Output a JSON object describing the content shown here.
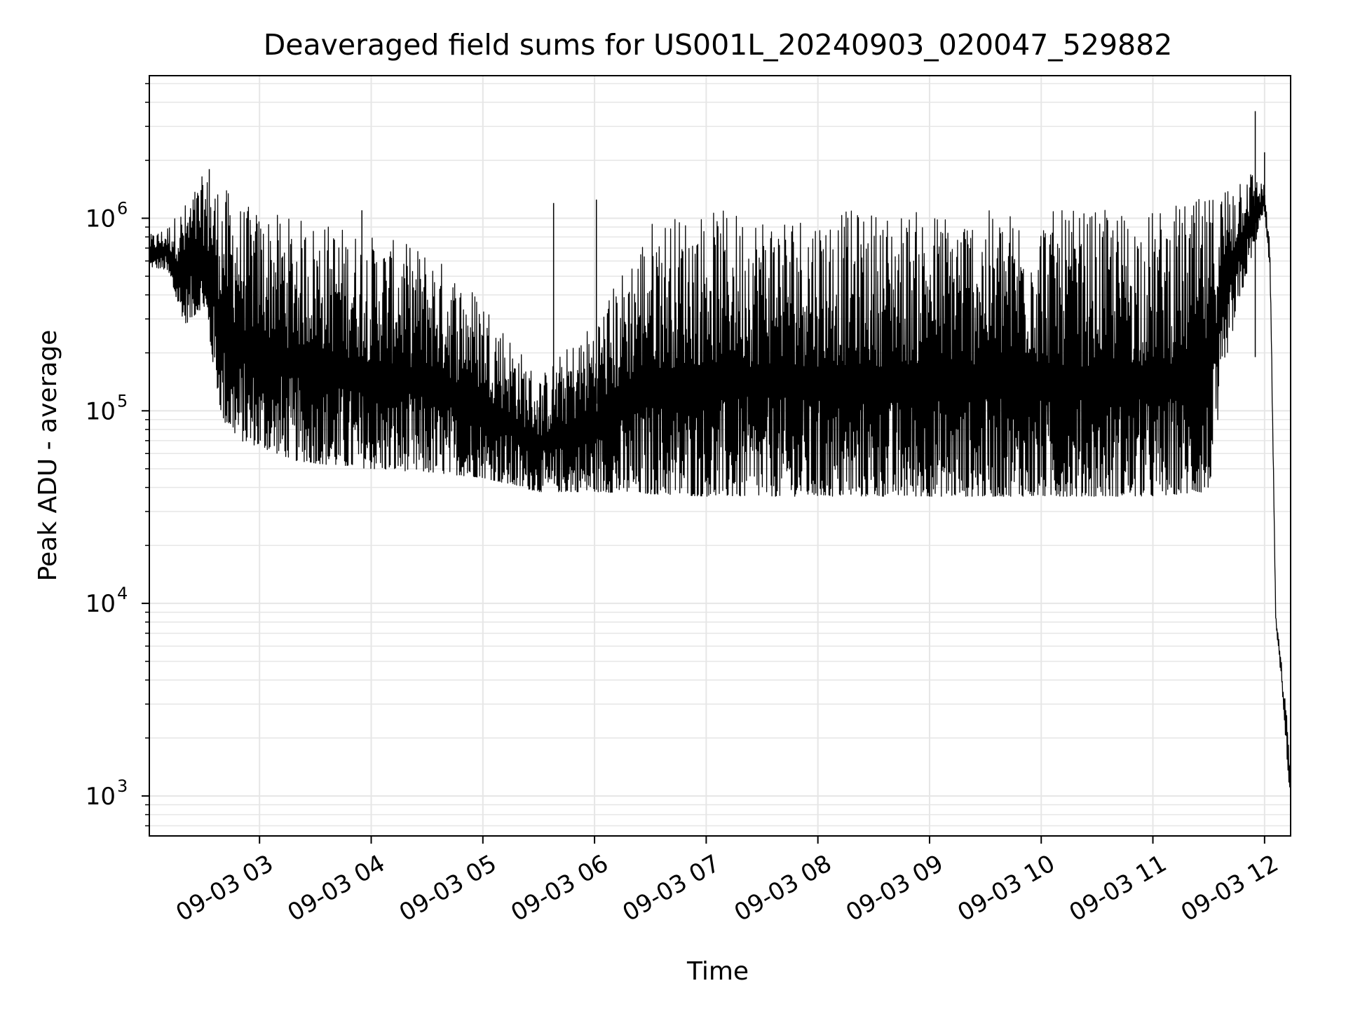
{
  "chart_data": {
    "type": "line",
    "title": "Deaveraged field sums for US001L_20240903_020047_529882",
    "xlabel": "Time",
    "ylabel": "Peak ADU - average",
    "y_scale": "log",
    "ylim": [
      620,
      5500000
    ],
    "xlim": [
      "2024-09-03 02:00:47",
      "2024-09-03 12:14:00"
    ],
    "grid": true,
    "x_ticks": [
      {
        "value": "2024-09-03 03:00",
        "label": "09-03 03"
      },
      {
        "value": "2024-09-03 04:00",
        "label": "09-03 04"
      },
      {
        "value": "2024-09-03 05:00",
        "label": "09-03 05"
      },
      {
        "value": "2024-09-03 06:00",
        "label": "09-03 06"
      },
      {
        "value": "2024-09-03 07:00",
        "label": "09-03 07"
      },
      {
        "value": "2024-09-03 08:00",
        "label": "09-03 08"
      },
      {
        "value": "2024-09-03 09:00",
        "label": "09-03 09"
      },
      {
        "value": "2024-09-03 10:00",
        "label": "09-03 10"
      },
      {
        "value": "2024-09-03 11:00",
        "label": "09-03 11"
      },
      {
        "value": "2024-09-03 12:00",
        "label": "09-03 12"
      }
    ],
    "y_ticks": [
      {
        "value": 1000,
        "base": "10",
        "exp": "3"
      },
      {
        "value": 10000,
        "base": "10",
        "exp": "4"
      },
      {
        "value": 100000,
        "base": "10",
        "exp": "5"
      },
      {
        "value": 1000000,
        "base": "10",
        "exp": "6"
      }
    ],
    "series": [
      {
        "color": "#000000",
        "envelope": [
          {
            "t": "2024-09-03 02:01",
            "low": 560000,
            "high": 820000
          },
          {
            "t": "2024-09-03 02:10",
            "low": 540000,
            "high": 900000
          },
          {
            "t": "2024-09-03 02:20",
            "low": 280000,
            "high": 1200000
          },
          {
            "t": "2024-09-03 02:30",
            "low": 350000,
            "high": 1700000
          },
          {
            "t": "2024-09-03 02:40",
            "low": 90000,
            "high": 1500000
          },
          {
            "t": "2024-09-03 02:50",
            "low": 70000,
            "high": 1200000
          },
          {
            "t": "2024-09-03 03:00",
            "low": 65000,
            "high": 1100000
          },
          {
            "t": "2024-09-03 03:20",
            "low": 55000,
            "high": 1000000
          },
          {
            "t": "2024-09-03 03:40",
            "low": 52000,
            "high": 950000
          },
          {
            "t": "2024-09-03 04:00",
            "low": 50000,
            "high": 820000
          },
          {
            "t": "2024-09-03 04:30",
            "low": 48000,
            "high": 700000
          },
          {
            "t": "2024-09-03 05:00",
            "low": 45000,
            "high": 400000
          },
          {
            "t": "2024-09-03 05:30",
            "low": 38000,
            "high": 150000
          },
          {
            "t": "2024-09-03 06:00",
            "low": 38000,
            "high": 300000
          },
          {
            "t": "2024-09-03 06:30",
            "low": 37000,
            "high": 1000000
          },
          {
            "t": "2024-09-03 07:00",
            "low": 36000,
            "high": 1100000
          },
          {
            "t": "2024-09-03 08:00",
            "low": 36000,
            "high": 1100000
          },
          {
            "t": "2024-09-03 09:00",
            "low": 36000,
            "high": 1100000
          },
          {
            "t": "2024-09-03 10:00",
            "low": 36000,
            "high": 1100000
          },
          {
            "t": "2024-09-03 11:00",
            "low": 36000,
            "high": 1100000
          },
          {
            "t": "2024-09-03 11:30",
            "low": 38000,
            "high": 1300000
          },
          {
            "t": "2024-09-03 11:40",
            "low": 200000,
            "high": 1600000
          },
          {
            "t": "2024-09-03 11:50",
            "low": 500000,
            "high": 1900000
          },
          {
            "t": "2024-09-03 12:00",
            "low": 1100000,
            "high": 1500000
          },
          {
            "t": "2024-09-03 12:03",
            "low": 500000,
            "high": 700000
          },
          {
            "t": "2024-09-03 12:06",
            "low": 8000,
            "high": 9000
          },
          {
            "t": "2024-09-03 12:09",
            "low": 4000,
            "high": 5000
          },
          {
            "t": "2024-09-03 12:12",
            "low": 1600,
            "high": 2600
          },
          {
            "t": "2024-09-03 12:14",
            "low": 900,
            "high": 1500
          }
        ],
        "spikes": [
          {
            "t": "2024-09-03 02:33",
            "value": 1800000
          },
          {
            "t": "2024-09-03 03:55",
            "value": 1100000
          },
          {
            "t": "2024-09-03 05:38",
            "value": 1200000
          },
          {
            "t": "2024-09-03 06:01",
            "value": 1250000
          },
          {
            "t": "2024-09-03 11:55",
            "value": 3600000
          },
          {
            "t": "2024-09-03 11:55",
            "value": 190000
          },
          {
            "t": "2024-09-03 12:00",
            "value": 2200000
          }
        ]
      }
    ]
  }
}
